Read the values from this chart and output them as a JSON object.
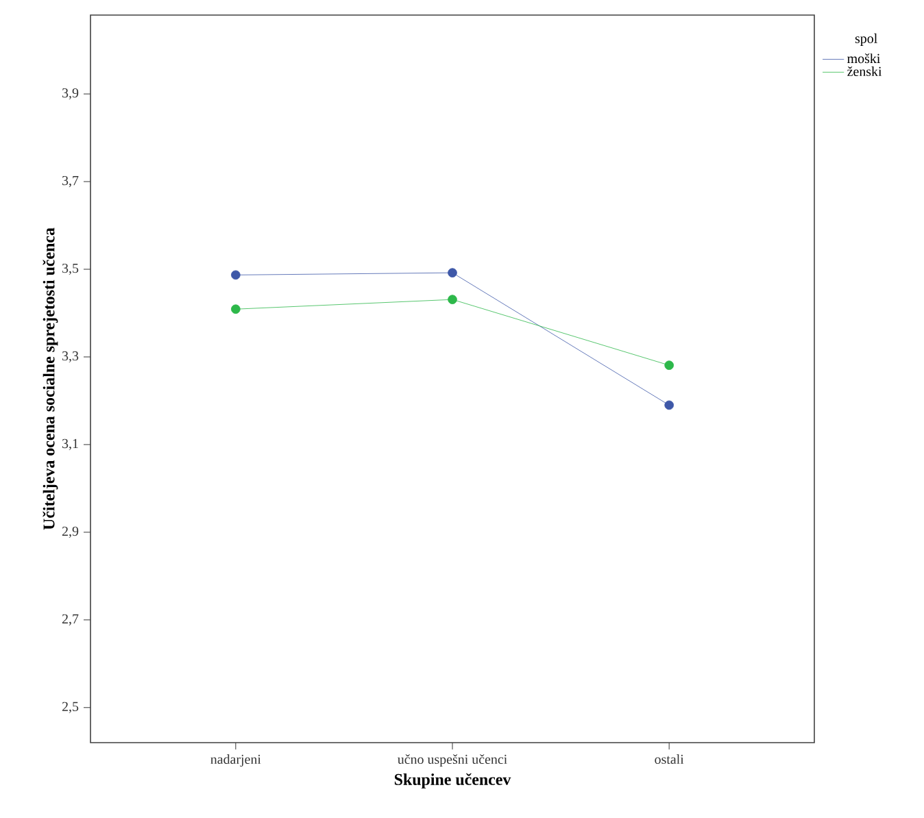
{
  "chart_data": {
    "type": "line",
    "xlabel": "Skupine učencev",
    "ylabel": "Učiteljeva ocena socialne sprejetosti učenca",
    "legend_title": "spol",
    "categories": [
      "nadarjeni",
      "učno uspešni učenci",
      "ostali"
    ],
    "series": [
      {
        "name": "moški",
        "color": "#3e58a8",
        "values": [
          3.487,
          3.492,
          3.19
        ]
      },
      {
        "name": "ženski",
        "color": "#2db84a",
        "values": [
          3.409,
          3.431,
          3.281
        ]
      }
    ],
    "ylim": [
      2.42,
      4.08
    ],
    "yticks": [
      {
        "value": 2.5,
        "label": "2,5"
      },
      {
        "value": 2.7,
        "label": "2,7"
      },
      {
        "value": 2.9,
        "label": "2,9"
      },
      {
        "value": 3.1,
        "label": "3,1"
      },
      {
        "value": 3.3,
        "label": "3,3"
      },
      {
        "value": 3.5,
        "label": "3,5"
      },
      {
        "value": 3.7,
        "label": "3,7"
      },
      {
        "value": 3.9,
        "label": "3,9"
      }
    ],
    "legend": "top right",
    "marker": "circle",
    "line_style": "solid",
    "grid": false
  }
}
